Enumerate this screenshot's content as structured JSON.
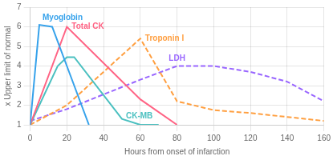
{
  "chart_data": {
    "type": "line",
    "xlabel": "Hours from onset of infarction",
    "ylabel": "x Upper limit of normal",
    "xlim": [
      0,
      160
    ],
    "ylim": [
      1,
      7
    ],
    "xticks": [
      0,
      20,
      40,
      60,
      80,
      100,
      120,
      140,
      160
    ],
    "yticks": [
      1,
      2,
      3,
      4,
      5,
      6,
      7
    ],
    "grid": true,
    "series": [
      {
        "name": "Myoglobin",
        "line_style": "solid",
        "x": [
          0,
          5,
          12,
          22,
          32
        ],
        "values": [
          1.0,
          6.1,
          6.0,
          3.5,
          1.0
        ]
      },
      {
        "name": "Total CK",
        "line_style": "solid",
        "x": [
          0,
          20,
          60,
          80
        ],
        "values": [
          1.0,
          6.0,
          2.3,
          1.0
        ]
      },
      {
        "name": "CK-MB",
        "line_style": "solid",
        "x": [
          0,
          15,
          20,
          24,
          50,
          60,
          70
        ],
        "values": [
          1.0,
          4.0,
          4.45,
          4.45,
          1.3,
          1.0,
          1.0
        ]
      },
      {
        "name": "Troponin I",
        "line_style": "dashed",
        "x": [
          0,
          20,
          60,
          80,
          100,
          120,
          140,
          160
        ],
        "values": [
          1.0,
          2.0,
          5.4,
          2.2,
          1.75,
          1.6,
          1.4,
          1.2
        ]
      },
      {
        "name": "LDH",
        "line_style": "dashed",
        "x": [
          0,
          20,
          60,
          80,
          100,
          120,
          140,
          160
        ],
        "values": [
          1.2,
          1.8,
          3.3,
          4.0,
          4.0,
          3.7,
          3.2,
          2.2
        ]
      }
    ]
  }
}
